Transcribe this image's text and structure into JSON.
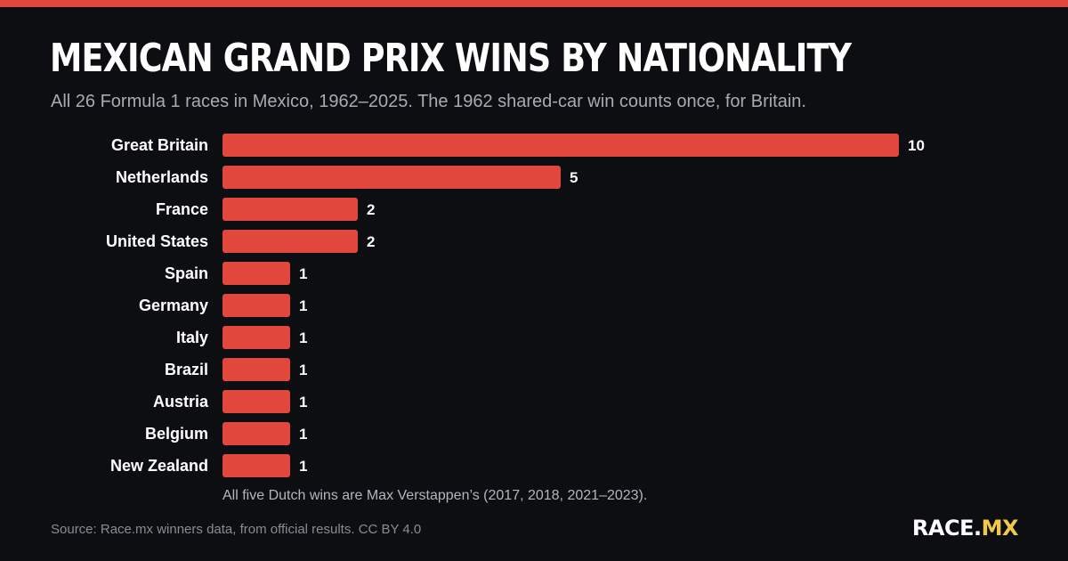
{
  "colors": {
    "background": "#0d0e11",
    "accent": "#e2473d",
    "brand_highlight": "#f2c84b",
    "subtitle_text": "#a9abb3",
    "source_text": "#8a8c94"
  },
  "header": {
    "title": "MEXICAN GRAND PRIX WINS BY NATIONALITY",
    "subtitle": "All 26 Formula 1 races in Mexico, 1962–2025. The 1962 shared-car win counts once, for Britain."
  },
  "chart_data": {
    "type": "bar",
    "orientation": "horizontal",
    "title": "MEXICAN GRAND PRIX WINS BY NATIONALITY",
    "xlabel": "",
    "ylabel": "",
    "grid": false,
    "xlim": [
      0,
      10
    ],
    "categories": [
      "Great Britain",
      "Netherlands",
      "France",
      "United States",
      "Spain",
      "Germany",
      "Italy",
      "Brazil",
      "Austria",
      "Belgium",
      "New Zealand"
    ],
    "values": [
      10,
      5,
      2,
      2,
      1,
      1,
      1,
      1,
      1,
      1,
      1
    ],
    "annotation": "All five Dutch wins are Max Verstappen’s (2017, 2018, 2021–2023)."
  },
  "footer": {
    "source": "Source: Race.mx winners data, from official results. CC BY 4.0",
    "brand_main": "RACE.",
    "brand_tld": "MX"
  }
}
